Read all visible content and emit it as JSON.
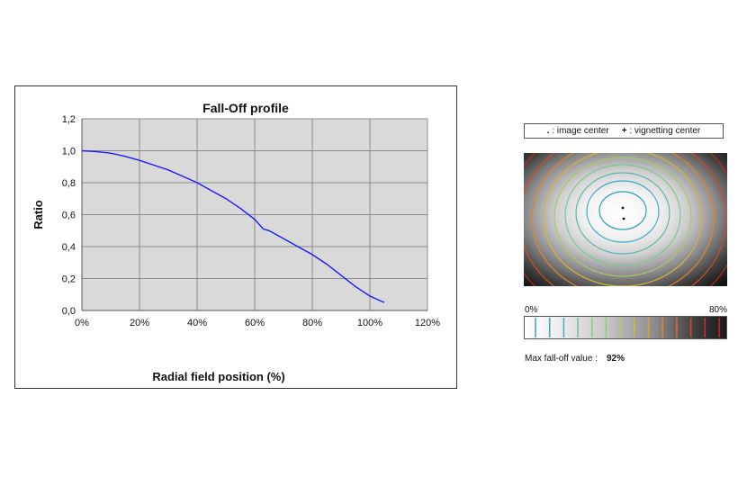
{
  "chart_data": {
    "type": "line",
    "title": "Fall-Off profile",
    "xlabel": "Radial field position (%)",
    "ylabel": "Ratio",
    "xlim": [
      0,
      120
    ],
    "ylim": [
      0,
      1.2
    ],
    "x_ticks": [
      "0%",
      "20%",
      "40%",
      "60%",
      "80%",
      "100%",
      "120%"
    ],
    "y_ticks": [
      "0,0",
      "0,2",
      "0,4",
      "0,6",
      "0,8",
      "1,0",
      "1,2"
    ],
    "grid": true,
    "series": [
      {
        "color": "#1a1aff",
        "x": [
          0,
          5,
          10,
          15,
          20,
          25,
          30,
          35,
          40,
          45,
          50,
          55,
          60,
          63,
          65,
          70,
          75,
          80,
          85,
          90,
          95,
          100,
          105
        ],
        "y": [
          1.0,
          0.995,
          0.985,
          0.965,
          0.94,
          0.91,
          0.88,
          0.84,
          0.8,
          0.75,
          0.7,
          0.64,
          0.57,
          0.51,
          0.5,
          0.45,
          0.4,
          0.35,
          0.29,
          0.22,
          0.15,
          0.09,
          0.05
        ]
      }
    ]
  },
  "legend": {
    "image_center_symbol": ".",
    "image_center_label": ": image center",
    "vignetting_center_symbol": "+",
    "vignetting_center_label": ": vignetting center"
  },
  "scale": {
    "min_label": "0%",
    "max_label": "80%",
    "contour_colors": [
      "#3aa8c8",
      "#3aa8c8",
      "#4ab0c0",
      "#6cbfa0",
      "#8ccf7a",
      "#8ccf7a",
      "#b0c860",
      "#d4b43a",
      "#e0a030",
      "#e08428",
      "#e06828",
      "#d24a24",
      "#c23420",
      "#b82a1e"
    ]
  },
  "max_falloff": {
    "label": "Max fall-off value :",
    "value": "92%"
  }
}
